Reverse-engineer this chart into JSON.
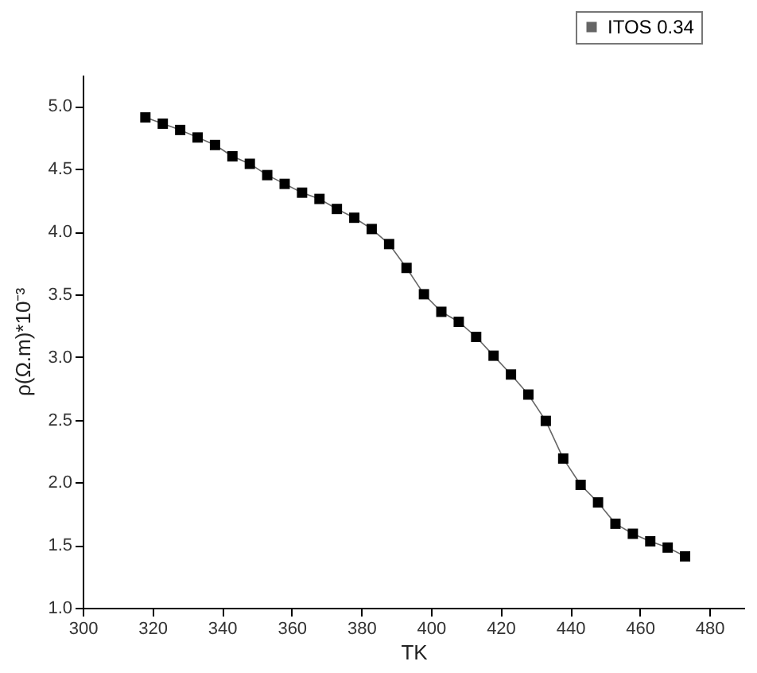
{
  "chart_data": {
    "type": "line",
    "xlabel": "TK",
    "ylabel": "ρ(Ω.m)*10⁻³",
    "x": [
      318,
      323,
      328,
      333,
      338,
      343,
      348,
      353,
      358,
      363,
      368,
      373,
      378,
      383,
      388,
      393,
      398,
      403,
      408,
      413,
      418,
      423,
      428,
      433,
      438,
      443,
      448,
      453,
      458,
      463,
      468,
      473
    ],
    "series": [
      {
        "name": "ITOS 0.34",
        "color": "#000000",
        "values": [
          4.91,
          4.86,
          4.81,
          4.75,
          4.69,
          4.6,
          4.54,
          4.45,
          4.38,
          4.31,
          4.26,
          4.18,
          4.11,
          4.02,
          3.9,
          3.71,
          3.5,
          3.36,
          3.28,
          3.16,
          3.01,
          2.86,
          2.7,
          2.49,
          2.19,
          1.98,
          1.84,
          1.67,
          1.59,
          1.53,
          1.48,
          1.41
        ]
      }
    ],
    "xlim": [
      300,
      490
    ],
    "xticks": [
      300,
      320,
      340,
      360,
      380,
      400,
      420,
      440,
      460,
      480
    ],
    "ylim": [
      1,
      5.25
    ],
    "yticks": [
      {
        "value": 1,
        "label": "1.0"
      },
      1.5,
      {
        "value": 2,
        "label": "2.0"
      },
      2.5,
      {
        "value": 3,
        "label": "3.0"
      },
      3.5,
      {
        "value": 4,
        "label": "4.0"
      },
      4.5,
      {
        "value": 5,
        "label": "5.0"
      }
    ],
    "marker": "square",
    "line_style": "solid",
    "legend": "top right",
    "grid": false
  }
}
